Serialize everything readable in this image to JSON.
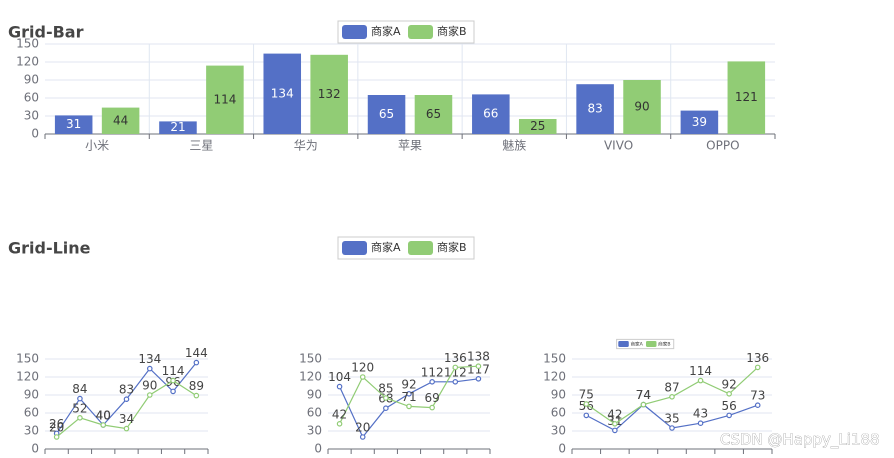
{
  "chart_data": [
    {
      "type": "bar",
      "title": "Grid-Bar",
      "legend": "top",
      "categories": [
        "小米",
        "三星",
        "华为",
        "苹果",
        "魅族",
        "VIVO",
        "OPPO"
      ],
      "series": [
        {
          "name": "商家A",
          "color": "#5470c6",
          "values": [
            31,
            21,
            134,
            65,
            66,
            83,
            39
          ]
        },
        {
          "name": "商家B",
          "color": "#91cc75",
          "values": [
            44,
            114,
            132,
            65,
            25,
            90,
            121
          ]
        }
      ],
      "ylim": [
        0,
        150
      ],
      "yticks": [
        0,
        30,
        60,
        90,
        120,
        150
      ],
      "grid": true
    },
    {
      "type": "line",
      "title": "Grid-Line",
      "legend": "top",
      "categories": [
        null,
        null,
        null,
        null,
        null,
        null,
        null
      ],
      "series": [
        {
          "name": "商家A",
          "color": "#5470c6",
          "values": [
            26,
            84,
            40,
            83,
            134,
            96,
            144
          ]
        },
        {
          "name": "商家B",
          "color": "#91cc75",
          "values": [
            20,
            52,
            40,
            34,
            90,
            114,
            89
          ]
        }
      ],
      "ylim": [
        0,
        150
      ],
      "yticks": [
        0,
        30,
        60,
        90,
        120,
        150
      ],
      "grid": true
    },
    {
      "type": "line",
      "categories": [
        null,
        null,
        null,
        null,
        null,
        null,
        null
      ],
      "series": [
        {
          "name": "商家A",
          "color": "#5470c6",
          "values": [
            104,
            20,
            68,
            92,
            112,
            112,
            117
          ]
        },
        {
          "name": "商家B",
          "color": "#91cc75",
          "values": [
            42,
            120,
            85,
            71,
            69,
            136,
            138
          ]
        }
      ],
      "ylim": [
        0,
        150
      ],
      "yticks": [
        0,
        30,
        60,
        90,
        120,
        150
      ],
      "grid": true
    },
    {
      "type": "line",
      "legend": "top",
      "categories": [
        null,
        null,
        null,
        null,
        null,
        null,
        null
      ],
      "series": [
        {
          "name": "商家A",
          "color": "#5470c6",
          "values": [
            56,
            31,
            74,
            35,
            43,
            56,
            73
          ]
        },
        {
          "name": "商家B",
          "color": "#91cc75",
          "values": [
            75,
            42,
            74,
            87,
            114,
            92,
            136
          ]
        }
      ],
      "ylim": [
        0,
        150
      ],
      "yticks": [
        0,
        30,
        60,
        90,
        120,
        150
      ],
      "grid": true
    }
  ],
  "watermark": "CSDN @Happy_Li188"
}
